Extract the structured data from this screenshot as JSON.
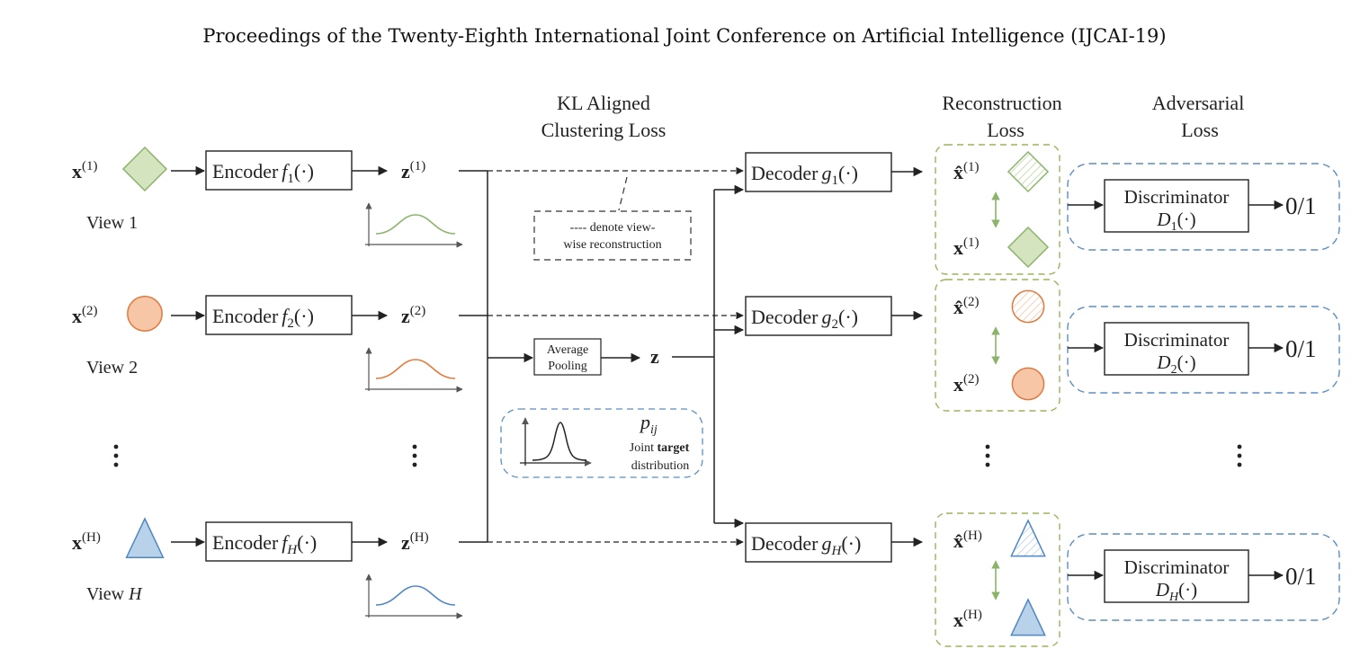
{
  "header": "Proceedings of the Twenty-Eighth International Joint Conference on Artificial Intelligence (IJCAI-19)",
  "section_titles": {
    "kl": [
      "KL Aligned",
      "Clustering Loss"
    ],
    "reconstruction": [
      "Reconstruction",
      "Loss"
    ],
    "adversarial": [
      "Adversarial",
      "Loss"
    ]
  },
  "views": [
    {
      "input": "x",
      "sup": "(1)",
      "name": "View 1",
      "encoder": "Encoder",
      "f": "f",
      "fsub": "1",
      "z_sup": "(1)",
      "decoder": "Decoder",
      "g": "g",
      "gsub": "1",
      "recon_sup": "(1)",
      "disc": "Discriminator",
      "d": "D",
      "dsub": "1",
      "output": "0/1",
      "color": "#8bb46a",
      "fill": "#d4e4bf"
    },
    {
      "input": "x",
      "sup": "(2)",
      "name": "View 2",
      "encoder": "Encoder",
      "f": "f",
      "fsub": "2",
      "z_sup": "(2)",
      "decoder": "Decoder",
      "g": "g",
      "gsub": "2",
      "recon_sup": "(2)",
      "disc": "Discriminator",
      "d": "D",
      "dsub": "2",
      "output": "0/1",
      "color": "#e07a3e",
      "fill": "#f6c6a6"
    },
    {
      "input": "x",
      "sup": "(H)",
      "name": "View H",
      "encoder": "Encoder",
      "f": "f",
      "fsub": "H",
      "z_sup": "(H)",
      "decoder": "Decoder",
      "g": "g",
      "gsub": "H",
      "recon_sup": "(H)",
      "disc": "Discriminator",
      "d": "D",
      "dsub": "H",
      "output": "0/1",
      "color": "#4f86c6",
      "fill": "#b8d2ea"
    }
  ],
  "pooling": {
    "line1": "Average",
    "line2": "Pooling",
    "z": "z"
  },
  "legend_note": {
    "line1": "---- denote view-",
    "line2": "wise reconstruction"
  },
  "target": {
    "p": "p",
    "sub": "ij",
    "line1a": "Joint ",
    "line1b": "target",
    "line2": "distribution"
  },
  "colors": {
    "green_dash": "#9bb35a",
    "blue_dash": "#5b8ec0",
    "arrow": "#222222"
  }
}
